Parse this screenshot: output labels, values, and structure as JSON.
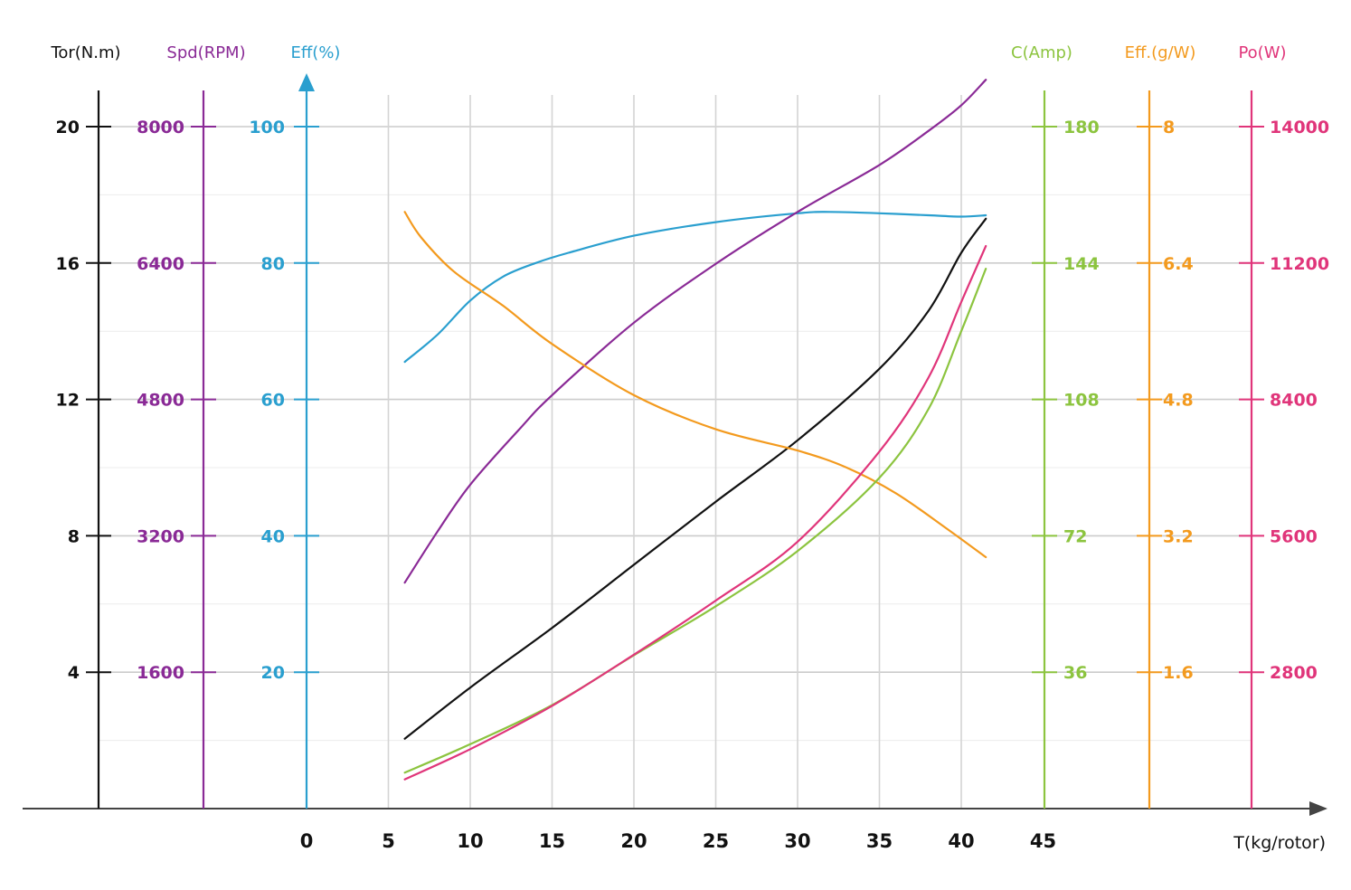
{
  "chart_data": {
    "type": "line",
    "x_axis": {
      "label": "T(kg/rotor)",
      "range": [
        0,
        45
      ],
      "ticks": [
        "0",
        "5",
        "10",
        "15",
        "20",
        "25",
        "30",
        "35",
        "40",
        "45"
      ]
    },
    "axes": [
      {
        "id": "tor",
        "label": "Tor(N.m)",
        "side": "left",
        "color": "#111111",
        "range": [
          0,
          20
        ],
        "ticks": [
          "4",
          "8",
          "12",
          "16",
          "20"
        ]
      },
      {
        "id": "spd",
        "label": "Spd(RPM)",
        "side": "left",
        "color": "#8a2a96",
        "range": [
          0,
          8000
        ],
        "ticks": [
          "1600",
          "3200",
          "4800",
          "6400",
          "8000"
        ]
      },
      {
        "id": "eff",
        "label": "Eff(%)",
        "side": "left",
        "color": "#2a9fcf",
        "range": [
          0,
          100
        ],
        "ticks": [
          "20",
          "40",
          "60",
          "80",
          "100"
        ]
      },
      {
        "id": "cur",
        "label": "C(Amp)",
        "side": "right",
        "color": "#8cc43f",
        "range": [
          0,
          180
        ],
        "ticks": [
          "36",
          "72",
          "108",
          "144",
          "180"
        ]
      },
      {
        "id": "effg",
        "label": "Eff.(g/W)",
        "side": "right",
        "color": "#f39a1e",
        "range": [
          0,
          8
        ],
        "ticks": [
          "1.6",
          "3.2",
          "4.8",
          "6.4",
          "8"
        ]
      },
      {
        "id": "po",
        "label": "Po(W)",
        "side": "right",
        "color": "#e0357a",
        "range": [
          0,
          14000
        ],
        "ticks": [
          "2800",
          "5600",
          "8400",
          "11200",
          "14000"
        ]
      }
    ],
    "series": [
      {
        "axis": "eff",
        "color": "#2a9fcf",
        "x": [
          6,
          8,
          10,
          12,
          14,
          16,
          20,
          25,
          30,
          32,
          35,
          38,
          40,
          41.5
        ],
        "y": [
          65.5,
          69.5,
          74.5,
          78,
          80,
          81.5,
          84,
          86,
          87.3,
          87.5,
          87.3,
          87,
          86.8,
          87
        ]
      },
      {
        "axis": "spd",
        "color": "#8a2a96",
        "x": [
          6,
          8,
          10,
          13,
          15,
          20,
          25,
          30,
          35,
          38,
          40,
          41.5
        ],
        "y": [
          2650,
          3250,
          3800,
          4450,
          4850,
          5700,
          6390,
          7000,
          7550,
          7950,
          8250,
          8550
        ]
      },
      {
        "axis": "tor",
        "color": "#111111",
        "x": [
          6,
          10,
          15,
          20,
          25,
          30,
          35,
          38,
          40,
          41.5
        ],
        "y": [
          2.05,
          3.55,
          5.3,
          7.15,
          9.0,
          10.8,
          12.9,
          14.6,
          16.3,
          17.3
        ]
      },
      {
        "axis": "effg",
        "color": "#f39a1e",
        "x": [
          6,
          7,
          9,
          12,
          15,
          20,
          25,
          30,
          33,
          36,
          39,
          41.5
        ],
        "y": [
          7.0,
          6.7,
          6.3,
          5.9,
          5.45,
          4.85,
          4.45,
          4.2,
          4.0,
          3.7,
          3.3,
          2.95
        ]
      },
      {
        "axis": "cur",
        "color": "#8cc43f",
        "x": [
          6,
          10,
          15,
          20,
          25,
          30,
          35,
          38,
          40,
          41.5
        ],
        "y": [
          9.5,
          17.0,
          27.3,
          40.5,
          53.4,
          68.0,
          87.3,
          105.5,
          126.0,
          142.5
        ]
      },
      {
        "axis": "po",
        "color": "#e0357a",
        "x": [
          6,
          10,
          15,
          20,
          25,
          30,
          35,
          38,
          40,
          41.5
        ],
        "y": [
          600,
          1220,
          2110,
          3160,
          4270,
          5480,
          7330,
          8850,
          10400,
          11550
        ]
      }
    ],
    "grid": true
  }
}
